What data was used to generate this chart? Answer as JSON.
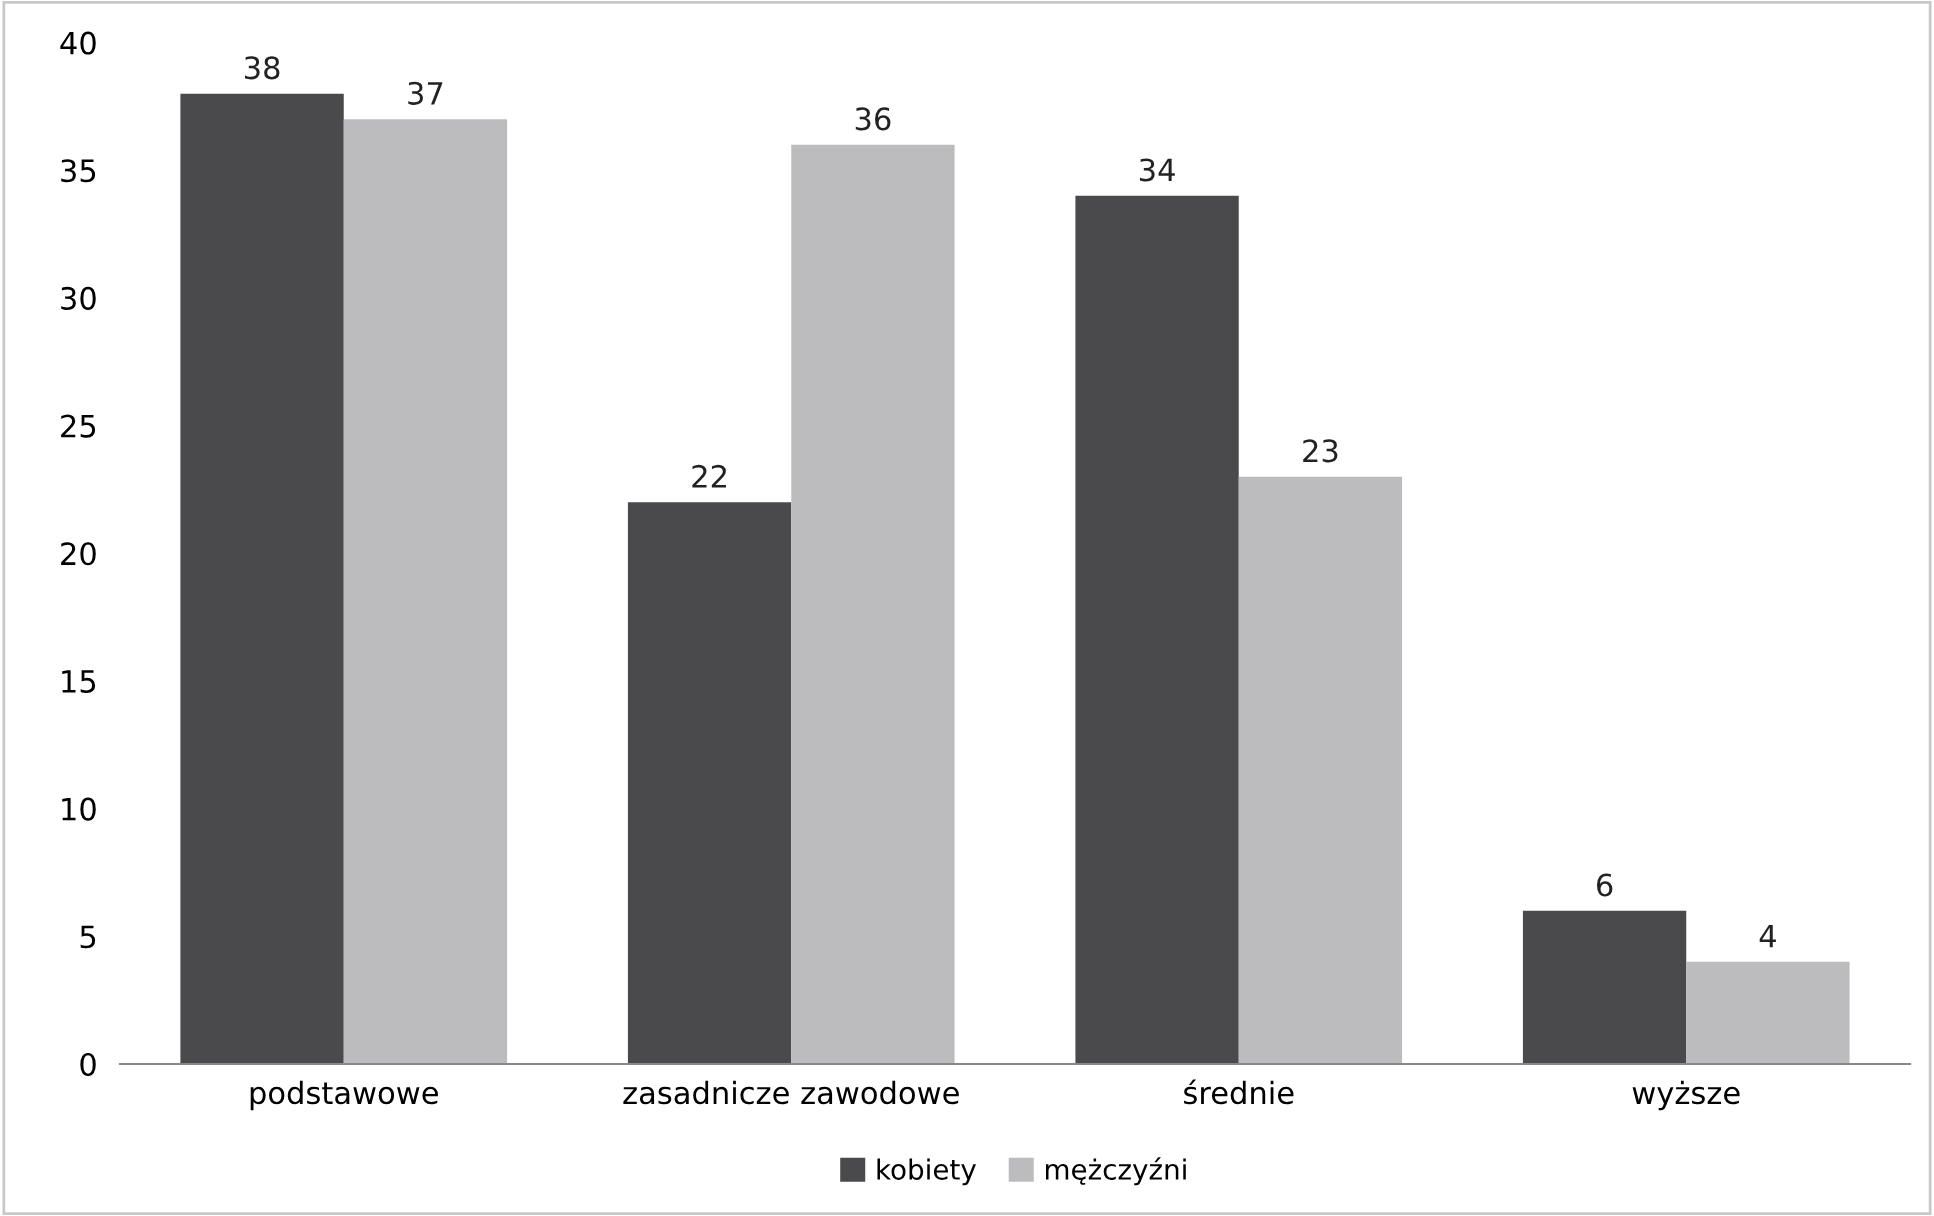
{
  "chart_data": {
    "type": "bar",
    "categories": [
      "podstawowe",
      "zasadnicze zawodowe",
      "średnie",
      "wyższe"
    ],
    "series": [
      {
        "name": "kobiety",
        "color": "#4a4a4c",
        "values": [
          38,
          22,
          34,
          6
        ]
      },
      {
        "name": "mężczyźni",
        "color": "#bcbcbe",
        "values": [
          37,
          36,
          23,
          4
        ]
      }
    ],
    "ylim": [
      0,
      40
    ],
    "yticks": [
      0,
      5,
      10,
      15,
      20,
      25,
      30,
      35,
      40
    ],
    "grid": false,
    "legend": "bottom",
    "data_labels": true
  }
}
